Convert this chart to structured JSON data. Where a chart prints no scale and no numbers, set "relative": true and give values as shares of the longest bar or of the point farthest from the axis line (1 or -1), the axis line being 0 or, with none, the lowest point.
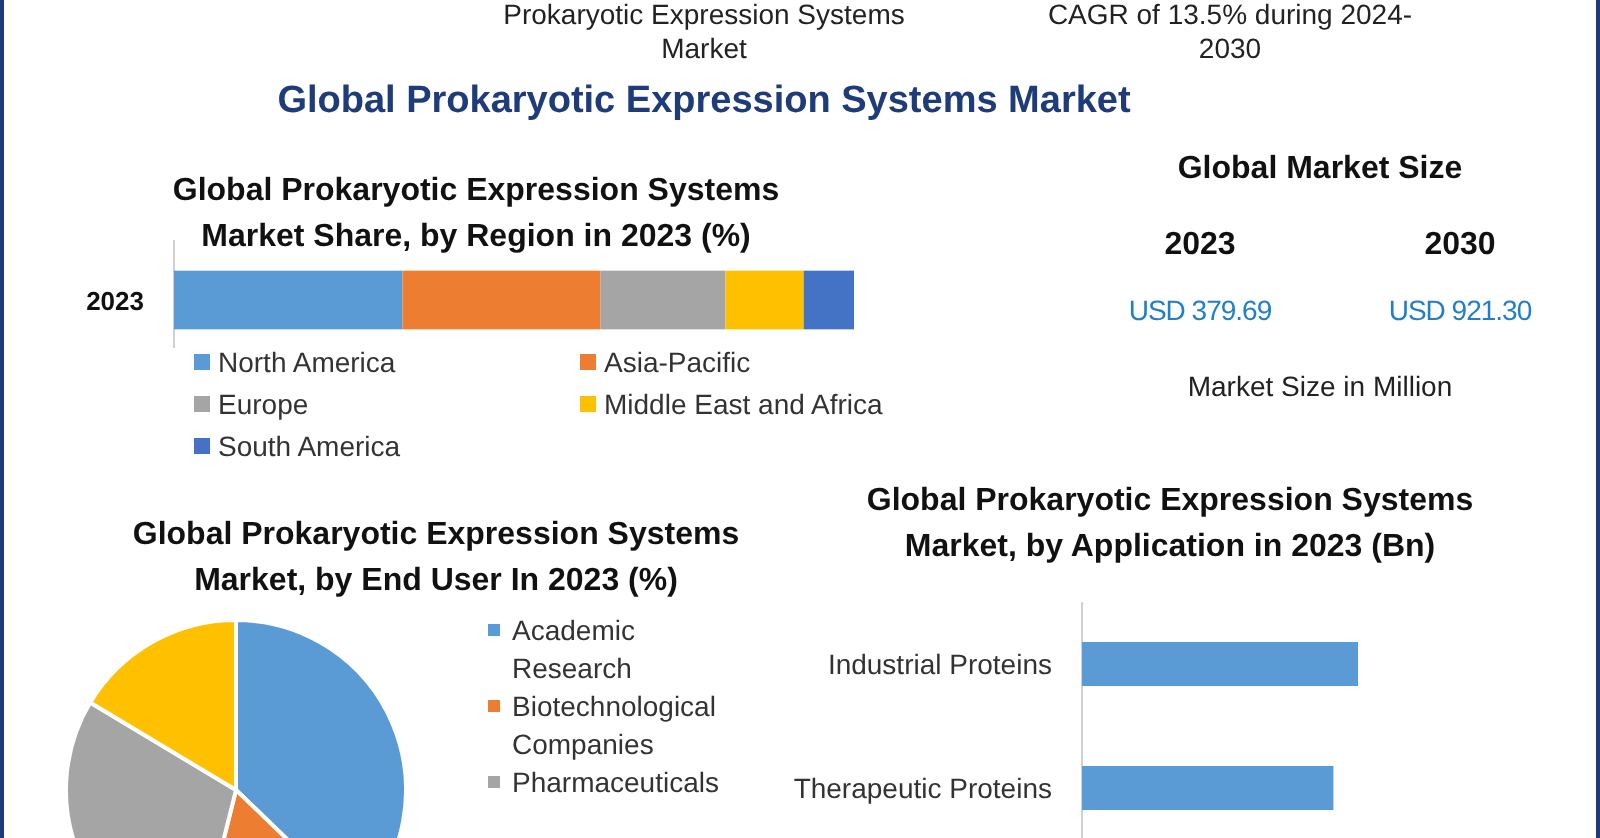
{
  "chart_data": [
    {
      "type": "other",
      "title": "Global Prokaryotic Expression Systems Market",
      "annotations": [
        "Prokaryotic Expression Systems Market",
        "CAGR of 13.5% during 2024-2030"
      ]
    },
    {
      "type": "bar",
      "title": "Global Prokaryotic Expression Systems Market Share, by Region in 2023 (%)",
      "orientation": "horizontal",
      "stacked": true,
      "relative": true,
      "legend": "bottom",
      "categories": [
        "2023"
      ],
      "series": [
        {
          "name": "North America",
          "color": "#5b9bd5",
          "values": [
            0.336
          ]
        },
        {
          "name": "Asia-Pacific",
          "color": "#ed7d31",
          "values": [
            0.291
          ]
        },
        {
          "name": "Europe",
          "color": "#a5a5a5",
          "values": [
            0.184
          ]
        },
        {
          "name": "Middle East and Africa",
          "color": "#ffc000",
          "values": [
            0.115
          ]
        },
        {
          "name": "South America",
          "color": "#4472c4",
          "values": [
            0.074
          ]
        }
      ]
    },
    {
      "type": "other",
      "title": "Global Market Size",
      "categories": [
        "2023",
        "2030"
      ],
      "values": [
        379.69,
        921.3
      ],
      "value_labels": [
        "USD 379.69",
        "USD 921.30"
      ],
      "color": "#1f7fc8",
      "annotations": [
        "Market Size in Million"
      ]
    },
    {
      "type": "pie",
      "title": "Global Prokaryotic Expression Systems Market, by End User In 2023 (%)",
      "legend": "right",
      "categories": [
        "Academic Research",
        "Biotechnological Companies",
        "Pharmaceuticals",
        null
      ],
      "values": [
        37.2,
        16.7,
        29.7,
        16.4
      ],
      "colors": [
        "#5b9bd5",
        "#ed7d31",
        "#a5a5a5",
        "#ffc000"
      ]
    },
    {
      "type": "bar",
      "title": "Global Prokaryotic Expression Systems Market, by Application in 2023 (Bn)",
      "orientation": "horizontal",
      "relative": true,
      "categories": [
        "Industrial Proteins",
        "Therapeutic Proteins"
      ],
      "values": [
        1,
        0.911
      ],
      "color": "#5b9bd5"
    }
  ]
}
